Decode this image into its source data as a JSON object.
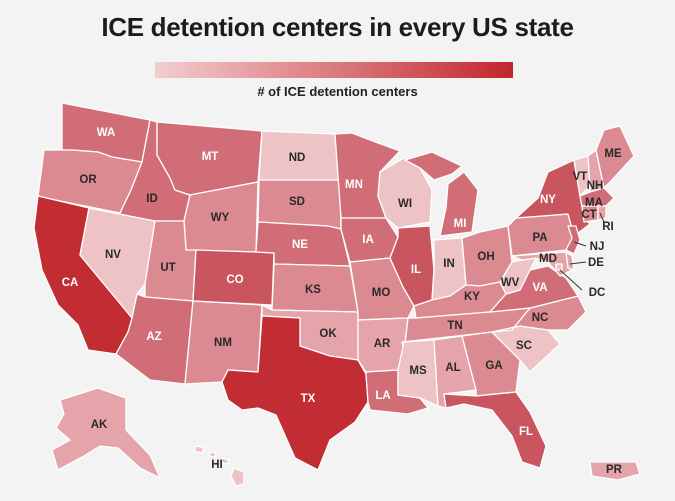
{
  "title": "ICE detention centers in every US state",
  "legend": {
    "label": "# of ICE detention centers",
    "color_low": "#f4cdcf",
    "color_high": "#c1272d"
  },
  "colors": {
    "l1": "#edc3c6",
    "l2": "#e5a4a9",
    "l3": "#dc8a91",
    "l4": "#d06d76",
    "l5": "#c9555e",
    "l6": "#c22d34"
  },
  "states": {
    "WA": {
      "label": "WA",
      "level": "l4"
    },
    "OR": {
      "label": "OR",
      "level": "l3"
    },
    "CA": {
      "label": "CA",
      "level": "l6"
    },
    "ID": {
      "label": "ID",
      "level": "l4"
    },
    "NV": {
      "label": "NV",
      "level": "l1"
    },
    "MT": {
      "label": "MT",
      "level": "l4"
    },
    "WY": {
      "label": "WY",
      "level": "l3"
    },
    "UT": {
      "label": "UT",
      "level": "l3"
    },
    "AZ": {
      "label": "AZ",
      "level": "l4"
    },
    "CO": {
      "label": "CO",
      "level": "l5"
    },
    "NM": {
      "label": "NM",
      "level": "l3"
    },
    "ND": {
      "label": "ND",
      "level": "l1"
    },
    "SD": {
      "label": "SD",
      "level": "l3"
    },
    "NE": {
      "label": "NE",
      "level": "l4"
    },
    "KS": {
      "label": "KS",
      "level": "l3"
    },
    "OK": {
      "label": "OK",
      "level": "l2"
    },
    "TX": {
      "label": "TX",
      "level": "l6"
    },
    "MN": {
      "label": "MN",
      "level": "l4"
    },
    "IA": {
      "label": "IA",
      "level": "l4"
    },
    "MO": {
      "label": "MO",
      "level": "l3"
    },
    "AR": {
      "label": "AR",
      "level": "l2"
    },
    "LA": {
      "label": "LA",
      "level": "l4"
    },
    "WI": {
      "label": "WI",
      "level": "l1"
    },
    "IL": {
      "label": "IL",
      "level": "l5"
    },
    "MI": {
      "label": "MI",
      "level": "l4"
    },
    "IN": {
      "label": "IN",
      "level": "l1"
    },
    "OH": {
      "label": "OH",
      "level": "l3"
    },
    "KY": {
      "label": "KY",
      "level": "l3"
    },
    "TN": {
      "label": "TN",
      "level": "l3"
    },
    "MS": {
      "label": "MS",
      "level": "l1"
    },
    "AL": {
      "label": "AL",
      "level": "l2"
    },
    "GA": {
      "label": "GA",
      "level": "l3"
    },
    "FL": {
      "label": "FL",
      "level": "l5"
    },
    "SC": {
      "label": "SC",
      "level": "l1"
    },
    "NC": {
      "label": "NC",
      "level": "l3"
    },
    "VA": {
      "label": "VA",
      "level": "l4"
    },
    "WV": {
      "label": "WV",
      "level": "l1"
    },
    "PA": {
      "label": "PA",
      "level": "l3"
    },
    "NY": {
      "label": "NY",
      "level": "l5"
    },
    "NJ": {
      "label": "NJ",
      "level": "l4"
    },
    "DE": {
      "label": "DE",
      "level": "l2"
    },
    "MD": {
      "label": "MD",
      "level": "l2"
    },
    "DC": {
      "label": "DC",
      "level": "l1"
    },
    "VT": {
      "label": "VT",
      "level": "l1"
    },
    "NH": {
      "label": "NH",
      "level": "l2"
    },
    "ME": {
      "label": "ME",
      "level": "l3"
    },
    "MA": {
      "label": "MA",
      "level": "l4"
    },
    "CT": {
      "label": "CT",
      "level": "l3"
    },
    "RI": {
      "label": "RI",
      "level": "l2"
    },
    "AK": {
      "label": "AK",
      "level": "l2"
    },
    "HI": {
      "label": "HI",
      "level": "l1"
    },
    "PR": {
      "label": "PR",
      "level": "l2"
    }
  }
}
